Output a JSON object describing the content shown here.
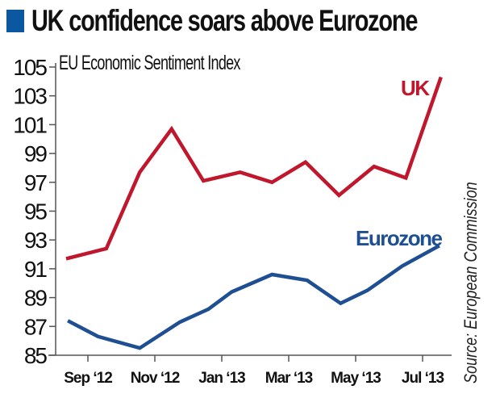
{
  "header": {
    "title": "UK confidence soars above Eurozone",
    "accent_color": "#0b58a0"
  },
  "source": "Source: European Commission",
  "chart_data": {
    "type": "line",
    "title": "UK confidence soars above Eurozone",
    "subtitle": "EU Economic Sentiment Index",
    "xlabel": "",
    "ylabel": "",
    "ylim": [
      85,
      105
    ],
    "yticks": [
      105,
      103,
      101,
      99,
      97,
      95,
      93,
      91,
      89,
      87,
      85
    ],
    "xtick_labels": [
      "Sep ‘12",
      "Nov ‘12",
      "Jan ‘13",
      "Mar ‘13",
      "May ‘13",
      "Jul ‘13"
    ],
    "xtick_positions": [
      0,
      2,
      4,
      6,
      8,
      10
    ],
    "xlim": [
      -1.55,
      11.3
    ],
    "grid": false,
    "legend": "inline labels near line ends",
    "series": [
      {
        "name": "UK",
        "color": "#c0172d",
        "x": [
          -0.65,
          0.55,
          1.55,
          2.5,
          3.45,
          4.55,
          5.5,
          6.5,
          7.5,
          8.55,
          9.5,
          10.55
        ],
        "values": [
          91.7,
          92.4,
          97.7,
          100.7,
          97.1,
          97.7,
          97.0,
          98.4,
          96.1,
          98.1,
          97.3,
          104.3
        ]
      },
      {
        "name": "Eurozone",
        "color": "#1f4f93",
        "x": [
          -0.6,
          0.3,
          1.55,
          2.75,
          3.6,
          4.3,
          5.5,
          6.55,
          7.55,
          8.35,
          9.4,
          10.5
        ],
        "values": [
          87.4,
          86.3,
          85.5,
          87.3,
          88.2,
          89.4,
          90.6,
          90.2,
          88.6,
          89.5,
          91.2,
          92.6
        ]
      }
    ]
  }
}
